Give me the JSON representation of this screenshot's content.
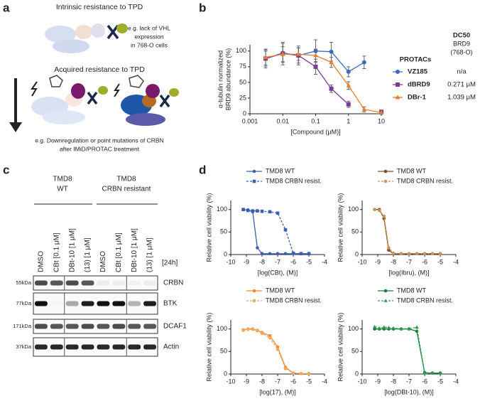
{
  "panel_labels": [
    "a",
    "b",
    "c",
    "d"
  ],
  "illustration": {
    "intrinsic_title": "Intrinsic resistance to TPD",
    "intrinsic_note": [
      "e.g. lack of VHL",
      "expression",
      "in 768-O cells"
    ],
    "acquired_title": "Acquired resistance to TPD",
    "acquired_note": [
      "e.g. Downregulation or point mutations of CRBN",
      "after IMiD/PROTAC treatment"
    ]
  },
  "blot": {
    "groups": [
      [
        "TMD8",
        "WT"
      ],
      [
        "TMD8",
        "CRBN resistant"
      ]
    ],
    "lanes": [
      "DMSO",
      "CBt [0.1 μM]",
      "DBt-10 [1 μM]",
      "(13) [1 μM]",
      "DMSO",
      "CBt [0.1 μM]",
      "DBt-10 [1 μM]",
      "(13) [1 μM]"
    ],
    "time": "[24h]",
    "rows": [
      {
        "marker": "55kDa",
        "protein": "CRBN"
      },
      {
        "marker": "77kDa",
        "protein": "BTK"
      },
      {
        "marker": "171kDa",
        "protein": "DCAF1"
      },
      {
        "marker": "37kDa",
        "protein": "Actin"
      }
    ]
  },
  "chart_data": [
    {
      "type": "line",
      "xscale": "log",
      "xlim": [
        0.001,
        10
      ],
      "ylim": [
        0,
        110
      ],
      "xticks": [
        0.001,
        0.01,
        0.1,
        1,
        10
      ],
      "yticks": [
        0,
        25,
        50,
        75,
        100
      ],
      "xlabel": "[Compound (μM)]",
      "ylabel": [
        "α-tubulin normalized",
        "BRD9 abundance (%)"
      ],
      "legend_title": "PROTACs",
      "dc50_header": [
        "DC50",
        "BRD9",
        "(768-O)"
      ],
      "x": [
        0.003,
        0.01,
        0.03,
        0.1,
        0.3,
        1,
        3,
        10
      ],
      "series": [
        {
          "name": "VZ185",
          "color": "#3b6cc4",
          "marker": "circle",
          "dc50": "n/a",
          "values": [
            88,
            97,
            93,
            100,
            99,
            67,
            82,
            null
          ],
          "errors": [
            12,
            15,
            12,
            18,
            15,
            8,
            10,
            null
          ]
        },
        {
          "name": "dBRD9",
          "color": "#7a3a9a",
          "marker": "square",
          "dc50": "0.271 μM",
          "values": [
            88,
            96,
            93,
            75,
            40,
            15,
            null,
            3
          ],
          "errors": [
            15,
            18,
            15,
            12,
            6,
            5,
            null,
            3
          ]
        },
        {
          "name": "DBr-1",
          "color": "#ee7a30",
          "marker": "triangle",
          "dc50": "1.039 μM",
          "values": [
            90,
            95,
            95,
            93,
            82,
            45,
            7,
            2
          ],
          "errors": [
            12,
            12,
            10,
            10,
            8,
            6,
            4,
            3
          ]
        }
      ]
    },
    {
      "type": "line",
      "xlim": [
        -10,
        -4
      ],
      "ylim": [
        0,
        120
      ],
      "xticks": [
        -10,
        -9,
        -8,
        -7,
        -6,
        -5,
        -4
      ],
      "yticks": [
        0,
        50,
        100
      ],
      "zero_line": true,
      "xlabel": "[log(CBt), (M)]",
      "ylabel": "Relative cell viability (%)",
      "x": [
        -9.2,
        -8.9,
        -8.6,
        -8.3,
        -8.0,
        -7.5,
        -7.0,
        -6.5,
        -6.0,
        -5.5,
        -5.0
      ],
      "series": [
        {
          "name": "TMD8 WT",
          "color": "#3b5fb0",
          "line_style": "solid",
          "marker": "circle",
          "values": [
            100,
            99,
            95,
            15,
            2,
            2,
            2,
            2,
            2,
            2,
            2
          ]
        },
        {
          "name": "TMD8 CRBN resist.",
          "color": "#3b5fb0",
          "line_style": "dashed",
          "marker": "square",
          "values": [
            100,
            98,
            97,
            97,
            96,
            95,
            92,
            55,
            3,
            2,
            2
          ]
        }
      ]
    },
    {
      "type": "line",
      "xlim": [
        -10,
        -4
      ],
      "ylim": [
        0,
        120
      ],
      "xticks": [
        -10,
        -9,
        -8,
        -7,
        -6,
        -5,
        -4
      ],
      "yticks": [
        0,
        50,
        100
      ],
      "zero_line": true,
      "xlabel": "[log(Ibru), (M)]",
      "ylabel": "Relative cell viability (%)",
      "x": [
        -9.2,
        -8.9,
        -8.6,
        -8.3,
        -8.0,
        -7.5,
        -7.0,
        -6.5,
        -6.0,
        -5.5,
        -5.0
      ],
      "series": [
        {
          "name": "TMD8 WT",
          "color": "#7b4a1e",
          "line_style": "solid",
          "marker": "circle",
          "values": [
            100,
            100,
            80,
            10,
            2,
            2,
            2,
            2,
            2,
            2,
            2
          ]
        },
        {
          "name": "TMD8 CRBN resist.",
          "color": "#c8955a",
          "line_style": "dashed",
          "marker": "circle",
          "values": [
            100,
            98,
            85,
            15,
            3,
            2,
            2,
            2,
            2,
            2,
            2
          ]
        }
      ]
    },
    {
      "type": "line",
      "xlim": [
        -10,
        -4
      ],
      "ylim": [
        0,
        120
      ],
      "xticks": [
        -10,
        -9,
        -8,
        -7,
        -6,
        -5,
        -4
      ],
      "yticks": [
        0,
        50,
        100
      ],
      "zero_line": true,
      "xlabel": "[log(17), (M)]",
      "ylabel": "Relative cell viability (%)",
      "x": [
        -9.2,
        -8.9,
        -8.6,
        -8.3,
        -8.0,
        -7.5,
        -7.0,
        -6.5,
        -6.0,
        -5.5,
        -5.0
      ],
      "series": [
        {
          "name": "TMD8 WT",
          "color": "#f08a2c",
          "line_style": "solid",
          "marker": "circle",
          "values": [
            98,
            100,
            100,
            97,
            92,
            85,
            60,
            15,
            2,
            1,
            1
          ]
        },
        {
          "name": "TMD8 CRBN resist.",
          "color": "#f5a55c",
          "line_style": "dashed",
          "marker": "circle",
          "values": [
            97,
            99,
            99,
            96,
            90,
            80,
            55,
            12,
            2,
            1,
            1
          ]
        }
      ]
    },
    {
      "type": "line",
      "xlim": [
        -10,
        -4
      ],
      "ylim": [
        0,
        120
      ],
      "xticks": [
        -10,
        -9,
        -8,
        -7,
        -6,
        -5,
        -4
      ],
      "yticks": [
        0,
        50,
        100
      ],
      "zero_line": true,
      "xlabel": "[log(DBt-10), (M)]",
      "ylabel": "Relative cell viability (%)",
      "x": [
        -9.2,
        -8.9,
        -8.6,
        -8.3,
        -8.0,
        -7.5,
        -7.0,
        -6.5,
        -6.0,
        -5.5,
        -5.0
      ],
      "series": [
        {
          "name": "TMD8 WT",
          "color": "#1a7a3a",
          "line_style": "solid",
          "marker": "circle",
          "values": [
            100,
            100,
            100,
            100,
            100,
            100,
            100,
            95,
            3,
            2,
            2
          ]
        },
        {
          "name": "TMD8 CRBN resist.",
          "color": "#2e9a50",
          "line_style": "dashed",
          "marker": "triangle",
          "values": [
            105,
            102,
            104,
            103,
            102,
            100,
            100,
            104,
            2,
            2,
            2
          ]
        }
      ]
    }
  ]
}
